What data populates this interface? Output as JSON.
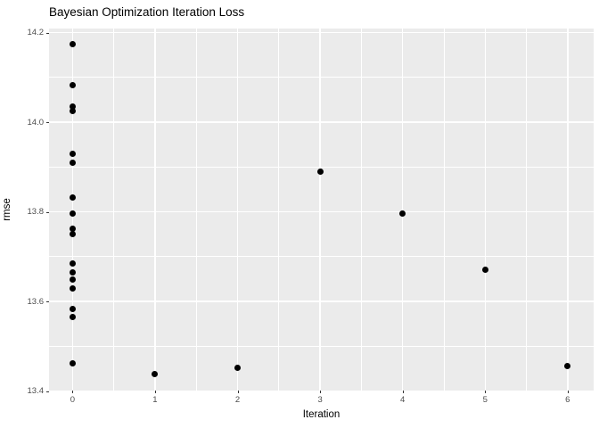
{
  "title": "Bayesian Optimization Iteration Loss",
  "colors": {
    "page_bg": "#FFFFFF",
    "panel_bg": "#EBEBEB",
    "grid": "#FFFFFF",
    "point": "#000000",
    "axis_text": "#4D4D4D",
    "title_text": "#000000",
    "tick_mark": "#333333"
  },
  "chart_data": {
    "type": "scatter",
    "title": "Bayesian Optimization Iteration Loss",
    "xlabel": "Iteration",
    "ylabel": "rmse",
    "xlim": [
      -0.285,
      6.315
    ],
    "ylim": [
      13.401,
      14.209
    ],
    "x_major_ticks": [
      0,
      1,
      2,
      3,
      4,
      5,
      6
    ],
    "x_minor_ticks": [
      0.5,
      1.5,
      2.5,
      3.5,
      4.5,
      5.5
    ],
    "y_major_ticks": [
      13.4,
      13.6,
      13.8,
      14.0,
      14.2
    ],
    "y_minor_ticks": [
      13.5,
      13.7,
      13.9,
      14.1
    ],
    "x_tick_labels": [
      "0",
      "1",
      "2",
      "3",
      "4",
      "5",
      "6"
    ],
    "y_tick_labels": [
      "13.4",
      "13.6",
      "13.8",
      "14.0",
      "14.2"
    ],
    "grid": true,
    "legend": false,
    "points": [
      {
        "x": 0,
        "y": 14.175
      },
      {
        "x": 0,
        "y": 14.083
      },
      {
        "x": 0,
        "y": 14.035
      },
      {
        "x": 0,
        "y": 14.025
      },
      {
        "x": 0,
        "y": 13.929
      },
      {
        "x": 0,
        "y": 13.909
      },
      {
        "x": 0,
        "y": 13.831
      },
      {
        "x": 0,
        "y": 13.797
      },
      {
        "x": 0,
        "y": 13.762
      },
      {
        "x": 0,
        "y": 13.75
      },
      {
        "x": 0,
        "y": 13.685
      },
      {
        "x": 0,
        "y": 13.665
      },
      {
        "x": 0,
        "y": 13.648
      },
      {
        "x": 0,
        "y": 13.628
      },
      {
        "x": 0,
        "y": 13.584
      },
      {
        "x": 0,
        "y": 13.565
      },
      {
        "x": 0,
        "y": 13.462
      },
      {
        "x": 1,
        "y": 13.438
      },
      {
        "x": 2,
        "y": 13.451
      },
      {
        "x": 3,
        "y": 13.89
      },
      {
        "x": 4,
        "y": 13.797
      },
      {
        "x": 5,
        "y": 13.67
      },
      {
        "x": 6,
        "y": 13.455
      }
    ]
  }
}
